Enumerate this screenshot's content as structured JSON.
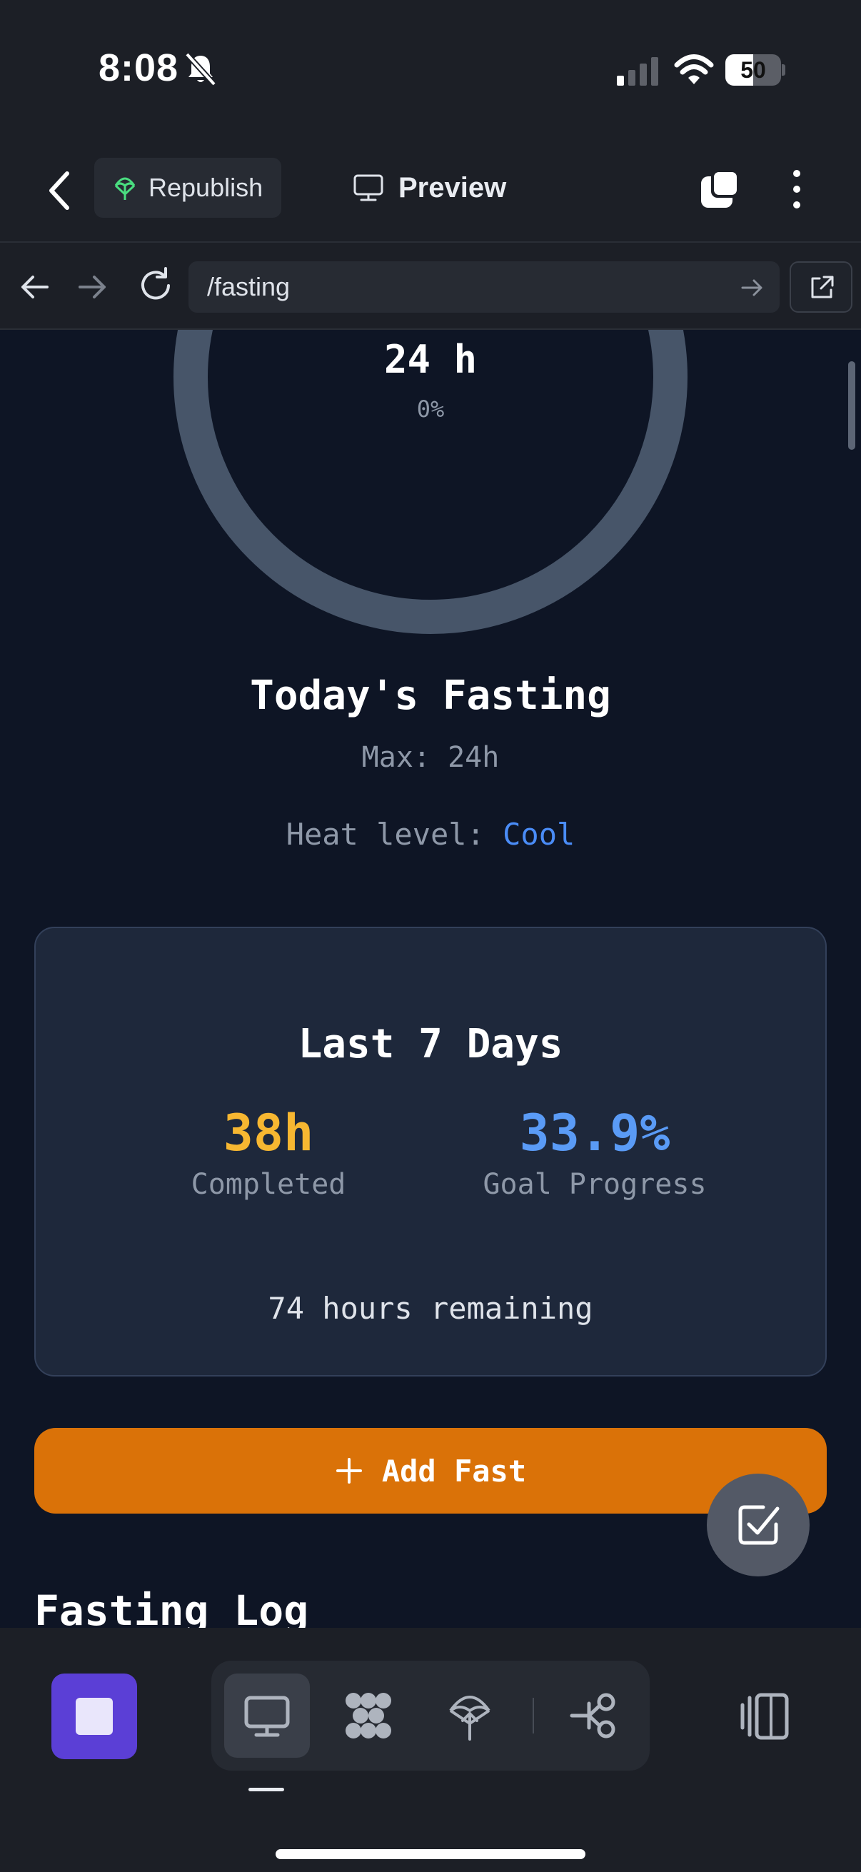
{
  "status_bar": {
    "time": "8:08",
    "battery_level": "50",
    "battery_percent": 50
  },
  "header": {
    "republish_label": "Republish",
    "preview_label": "Preview"
  },
  "url_bar": {
    "path": "/fasting"
  },
  "ring": {
    "hours": "24 h",
    "percent": "0%",
    "progress": 0
  },
  "today": {
    "title": "Today's Fasting",
    "max": "Max: 24h",
    "heat_label": "Heat level: ",
    "heat_value": "Cool"
  },
  "summary": {
    "title": "Last 7 Days",
    "completed_value": "38h",
    "completed_label": "Completed",
    "goal_value": "33.9%",
    "goal_label": "Goal Progress",
    "remaining": "74 hours remaining"
  },
  "actions": {
    "add_fast_label": "Add Fast"
  },
  "log": {
    "title": "Fasting Log"
  },
  "colors": {
    "completed": "#f7b731",
    "goal": "#5a9bf6",
    "heat_cool": "#4a8cf7",
    "add_button": "#da7208",
    "stop_button": "#5b3fd6",
    "ring_track": "#475569"
  },
  "icons": {
    "bottom_tools": [
      "monitor-icon",
      "nodes-icon",
      "deploy-icon",
      "share-graph-icon"
    ],
    "layout": "panel-layout-icon"
  }
}
